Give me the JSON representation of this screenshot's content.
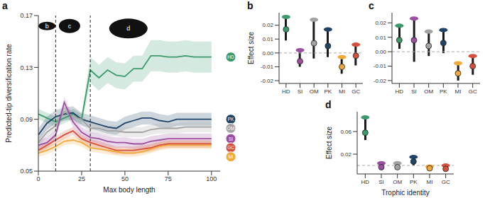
{
  "chart_data": [
    {
      "type": "line",
      "title": "a",
      "x_label": "Max body length",
      "y_label": "Predicted-tip diversification rate",
      "x": [
        0,
        5,
        10,
        15,
        20,
        25,
        30,
        35,
        40,
        45,
        50,
        55,
        60,
        65,
        70,
        75,
        80,
        85,
        90,
        95,
        100
      ],
      "xlim": [
        0,
        105
      ],
      "xticks": [
        0,
        25,
        50,
        75,
        100
      ],
      "ylim": [
        0.05,
        0.17
      ],
      "yticks": [
        0.05,
        0.09,
        0.13,
        0.17
      ],
      "reference_lines": [
        {
          "x": 10,
          "line_style": "dashed"
        },
        {
          "x": 30,
          "line_style": "dashed"
        }
      ],
      "annotations": [
        {
          "x": 5,
          "y": 0.162,
          "text": "b"
        },
        {
          "x": 18,
          "y": 0.162,
          "text": "c"
        },
        {
          "x": 52,
          "y": 0.16,
          "text": "d"
        }
      ],
      "series": [
        {
          "name": "HD",
          "color": "#3a9a6c",
          "values": [
            0.094,
            0.091,
            0.088,
            0.091,
            0.094,
            0.09,
            0.128,
            0.122,
            0.128,
            0.124,
            0.123,
            0.129,
            0.129,
            0.139,
            0.139,
            0.138,
            0.138,
            0.139,
            0.138,
            0.138,
            0.138
          ],
          "lower": [
            0.09,
            0.087,
            0.084,
            0.087,
            0.09,
            0.086,
            0.118,
            0.112,
            0.118,
            0.114,
            0.113,
            0.119,
            0.119,
            0.127,
            0.127,
            0.126,
            0.126,
            0.127,
            0.126,
            0.126,
            0.126
          ],
          "upper": [
            0.098,
            0.095,
            0.092,
            0.095,
            0.098,
            0.094,
            0.138,
            0.132,
            0.138,
            0.134,
            0.133,
            0.139,
            0.139,
            0.151,
            0.151,
            0.15,
            0.15,
            0.151,
            0.15,
            0.15,
            0.15
          ]
        },
        {
          "name": "PK",
          "color": "#1f4466",
          "values": [
            0.078,
            0.087,
            0.092,
            0.094,
            0.095,
            0.09,
            0.088,
            0.086,
            0.084,
            0.083,
            0.087,
            0.089,
            0.091,
            0.091,
            0.089,
            0.088,
            0.09,
            0.09,
            0.09,
            0.09,
            0.09
          ],
          "lower": [
            0.073,
            0.082,
            0.087,
            0.089,
            0.09,
            0.085,
            0.083,
            0.081,
            0.079,
            0.078,
            0.082,
            0.084,
            0.086,
            0.086,
            0.084,
            0.083,
            0.085,
            0.085,
            0.085,
            0.085,
            0.085
          ],
          "upper": [
            0.083,
            0.092,
            0.097,
            0.099,
            0.1,
            0.095,
            0.093,
            0.091,
            0.089,
            0.088,
            0.092,
            0.094,
            0.096,
            0.096,
            0.094,
            0.093,
            0.095,
            0.095,
            0.095,
            0.095,
            0.095
          ]
        },
        {
          "name": "OM",
          "color": "#a3a3a3",
          "values": [
            0.072,
            0.08,
            0.085,
            0.096,
            0.092,
            0.09,
            0.083,
            0.083,
            0.081,
            0.081,
            0.08,
            0.08,
            0.08,
            0.082,
            0.083,
            0.083,
            0.083,
            0.084,
            0.084,
            0.084,
            0.084
          ],
          "lower": [
            0.068,
            0.076,
            0.081,
            0.092,
            0.088,
            0.086,
            0.079,
            0.079,
            0.077,
            0.077,
            0.076,
            0.076,
            0.076,
            0.078,
            0.079,
            0.079,
            0.079,
            0.08,
            0.08,
            0.08,
            0.08
          ],
          "upper": [
            0.076,
            0.084,
            0.089,
            0.1,
            0.096,
            0.094,
            0.087,
            0.087,
            0.085,
            0.085,
            0.084,
            0.084,
            0.084,
            0.086,
            0.087,
            0.087,
            0.087,
            0.088,
            0.088,
            0.088,
            0.088
          ]
        },
        {
          "name": "SI",
          "color": "#9b4f9e",
          "values": [
            0.07,
            0.072,
            0.078,
            0.103,
            0.088,
            0.08,
            0.076,
            0.075,
            0.073,
            0.072,
            0.072,
            0.071,
            0.071,
            0.073,
            0.074,
            0.075,
            0.075,
            0.075,
            0.075,
            0.075,
            0.075
          ],
          "lower": [
            0.066,
            0.068,
            0.074,
            0.099,
            0.084,
            0.076,
            0.072,
            0.071,
            0.069,
            0.068,
            0.068,
            0.067,
            0.067,
            0.069,
            0.07,
            0.071,
            0.071,
            0.071,
            0.071,
            0.071,
            0.071
          ],
          "upper": [
            0.074,
            0.076,
            0.082,
            0.107,
            0.092,
            0.084,
            0.08,
            0.079,
            0.077,
            0.076,
            0.076,
            0.075,
            0.075,
            0.077,
            0.078,
            0.079,
            0.079,
            0.079,
            0.079,
            0.079,
            0.079
          ]
        },
        {
          "name": "GC",
          "color": "#d5503c",
          "values": [
            0.066,
            0.07,
            0.074,
            0.078,
            0.081,
            0.075,
            0.072,
            0.07,
            0.068,
            0.066,
            0.066,
            0.066,
            0.067,
            0.068,
            0.07,
            0.071,
            0.071,
            0.071,
            0.071,
            0.071,
            0.071
          ],
          "lower": [
            0.063,
            0.067,
            0.071,
            0.075,
            0.078,
            0.072,
            0.069,
            0.067,
            0.065,
            0.063,
            0.063,
            0.063,
            0.064,
            0.065,
            0.067,
            0.068,
            0.068,
            0.068,
            0.068,
            0.068,
            0.068
          ],
          "upper": [
            0.069,
            0.073,
            0.077,
            0.081,
            0.084,
            0.078,
            0.075,
            0.073,
            0.071,
            0.069,
            0.069,
            0.069,
            0.07,
            0.071,
            0.073,
            0.074,
            0.074,
            0.074,
            0.074,
            0.074,
            0.074
          ]
        },
        {
          "name": "MI",
          "color": "#f2a93b",
          "values": [
            0.064,
            0.066,
            0.069,
            0.073,
            0.074,
            0.072,
            0.068,
            0.067,
            0.066,
            0.065,
            0.064,
            0.064,
            0.065,
            0.067,
            0.069,
            0.07,
            0.07,
            0.07,
            0.07,
            0.07,
            0.07
          ],
          "lower": [
            0.061,
            0.063,
            0.066,
            0.07,
            0.071,
            0.069,
            0.065,
            0.064,
            0.063,
            0.062,
            0.061,
            0.061,
            0.062,
            0.064,
            0.066,
            0.067,
            0.067,
            0.067,
            0.067,
            0.067,
            0.067
          ],
          "upper": [
            0.067,
            0.069,
            0.072,
            0.076,
            0.077,
            0.075,
            0.071,
            0.07,
            0.069,
            0.068,
            0.067,
            0.067,
            0.068,
            0.07,
            0.072,
            0.073,
            0.073,
            0.073,
            0.073,
            0.073,
            0.073
          ]
        }
      ]
    },
    {
      "type": "scatter",
      "title": "b",
      "y_label": "Effect size",
      "categories": [
        "HD",
        "SI",
        "OM",
        "PK",
        "MI",
        "GC"
      ],
      "colors": [
        "#3a9a6c",
        "#9b4f9e",
        "#a3a3a3",
        "#1f4466",
        "#f2a93b",
        "#d5503c"
      ],
      "values": [
        0.017,
        -0.006,
        0.007,
        0.005,
        -0.01,
        -0.002
      ],
      "lower": [
        0.009,
        -0.01,
        -0.004,
        -0.003,
        -0.015,
        -0.009
      ],
      "upper": [
        0.026,
        0.002,
        0.024,
        0.017,
        -0.003,
        0.006
      ],
      "ylim": [
        -0.022,
        0.029
      ],
      "yticks": [
        -0.02,
        -0.01,
        {
          "value": 0,
          "label": "0.00"
        },
        0.01,
        0.02
      ],
      "reference_lines": [
        {
          "y": 0,
          "line_style": "dashed"
        }
      ]
    },
    {
      "type": "scatter",
      "title": "c",
      "categories": [
        "HD",
        "SI",
        "OM",
        "PK",
        "MI",
        "GC"
      ],
      "colors": [
        "#3a9a6c",
        "#9b4f9e",
        "#a3a3a3",
        "#1f4466",
        "#f2a93b",
        "#d5503c"
      ],
      "values": [
        0.008,
        0.008,
        0.004,
        0.006,
        -0.015,
        -0.01
      ],
      "lower": [
        0.002,
        -0.007,
        -0.003,
        -0.001,
        -0.02,
        -0.016
      ],
      "upper": [
        0.018,
        0.023,
        0.014,
        0.015,
        -0.008,
        -0.003
      ],
      "ylim": [
        -0.022,
        0.027
      ],
      "yticks": [
        -0.02,
        -0.01,
        {
          "value": 0,
          "label": "0.00"
        },
        0.01,
        0.02
      ],
      "reference_lines": [
        {
          "y": 0,
          "line_style": "dashed"
        }
      ]
    },
    {
      "type": "scatter",
      "title": "d",
      "x_label": "Trophic identity",
      "y_label": "Effect size",
      "categories": [
        "HD",
        "SI",
        "OM",
        "PK",
        "MI",
        "GC"
      ],
      "colors": [
        "#3a9a6c",
        "#9b4f9e",
        "#a3a3a3",
        "#1f4466",
        "#f2a93b",
        "#d5503c"
      ],
      "values": [
        0.058,
        -0.003,
        -0.003,
        0.007,
        -0.005,
        -0.006
      ],
      "lower": [
        0.045,
        -0.008,
        -0.007,
        0.0,
        -0.008,
        -0.01
      ],
      "upper": [
        0.085,
        0.004,
        0.004,
        0.015,
        -0.002,
        0.0
      ],
      "ylim": [
        -0.015,
        0.095
      ],
      "yticks": [
        0.02,
        0.06
      ],
      "reference_lines": [
        {
          "y": 0,
          "line_style": "dashed"
        }
      ]
    }
  ]
}
